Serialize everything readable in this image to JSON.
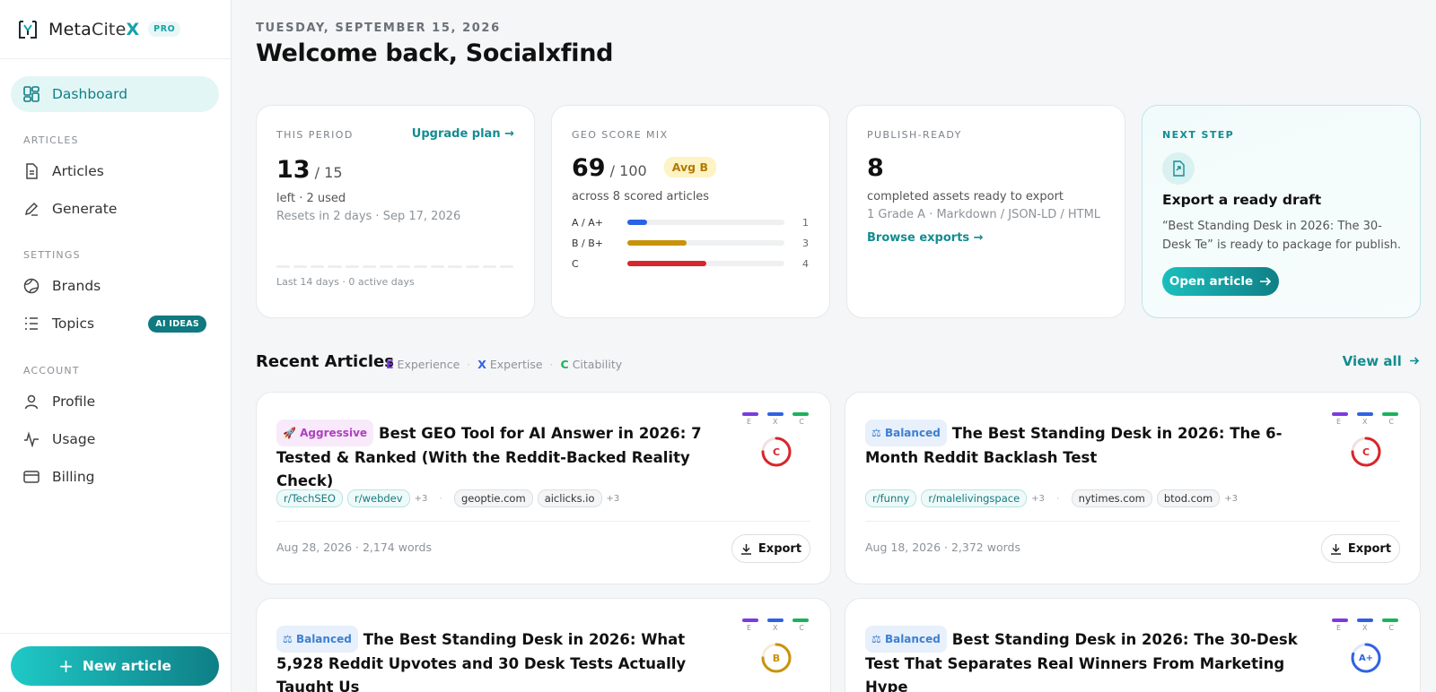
{
  "brand": {
    "name_prefix": "Meta",
    "name_mid": "Cite",
    "name_suffix": "X",
    "plan_badge": "PRO"
  },
  "nav": {
    "dashboard": "Dashboard",
    "section_articles": "ARTICLES",
    "articles": "Articles",
    "generate": "Generate",
    "section_settings": "SETTINGS",
    "brands": "Brands",
    "topics": "Topics",
    "topics_badge": "AI IDEAS",
    "section_account": "ACCOUNT",
    "profile": "Profile",
    "usage": "Usage",
    "billing": "Billing",
    "new_article": "New article"
  },
  "header": {
    "date": "TUESDAY, SEPTEMBER 15, 2026",
    "welcome": "Welcome back, Socialxfind"
  },
  "period": {
    "label": "THIS PERIOD",
    "upgrade": "Upgrade plan →",
    "left": "13",
    "total": "/ 15",
    "used": "left · 2 used",
    "resets": "Resets in 2 days · Sep 17, 2026",
    "activity": "Last 14 days · 0 active days",
    "activity_days": 14,
    "active_days": 0
  },
  "geo": {
    "label": "GEO SCORE MIX",
    "score": "69",
    "total": "/ 100",
    "avg_badge": "Avg B",
    "sub": "across 8 scored articles",
    "rows": [
      {
        "label": "A / A+",
        "count": "1",
        "fraction": 0.125,
        "color": "#2a62e6"
      },
      {
        "label": "B / B+",
        "count": "3",
        "fraction": 0.375,
        "color": "#c9920b"
      },
      {
        "label": "C",
        "count": "4",
        "fraction": 0.5,
        "color": "#d7262c"
      }
    ]
  },
  "publish": {
    "label": "PUBLISH-READY",
    "count": "8",
    "sub": "completed assets ready to export",
    "detail": "1 Grade A · Markdown / JSON-LD / HTML",
    "link": "Browse exports →"
  },
  "next": {
    "label": "NEXT STEP",
    "title": "Export a ready draft",
    "desc": "“Best Standing Desk in 2026: The 30-Desk Te” is ready to package for publish.",
    "button": "Open article"
  },
  "recent": {
    "title": "Recent Articles",
    "legend": [
      {
        "key": "E",
        "label": "Experience",
        "color": "#7c3ae0"
      },
      {
        "key": "X",
        "label": "Expertise",
        "color": "#2f62e3"
      },
      {
        "key": "C",
        "label": "Citability",
        "color": "#1bb35b"
      }
    ],
    "view_all": "View all",
    "articles": [
      {
        "mode": "Aggressive",
        "mode_icon": "🚀",
        "title": "Best GEO Tool for AI Answer in 2026: 7 Tested & Ranked (With the Reddit-Backed Reality Check)",
        "subs": [
          "r/TechSEO",
          "r/webdev"
        ],
        "subs_more": "+3",
        "domains": [
          "geoptie.com",
          "aiclicks.io"
        ],
        "domains_more": "+3",
        "meta": "Aug 28, 2026 · 2,174 words",
        "export": "Export",
        "grade": "C",
        "grade_color": "#d7262c",
        "grade_fraction": 0.75
      },
      {
        "mode": "Balanced",
        "mode_icon": "⚖",
        "title": "The Best Standing Desk in 2026: The 6-Month Reddit Backlash Test",
        "subs": [
          "r/funny",
          "r/malelivingspace"
        ],
        "subs_more": "+3",
        "domains": [
          "nytimes.com",
          "btod.com"
        ],
        "domains_more": "+3",
        "meta": "Aug 18, 2026 · 2,372 words",
        "export": "Export",
        "grade": "C",
        "grade_color": "#d7262c",
        "grade_fraction": 0.75
      },
      {
        "mode": "Balanced",
        "mode_icon": "⚖",
        "title": "The Best Standing Desk in 2026: What 5,928 Reddit Upvotes and 30 Desk Tests Actually Taught Us",
        "grade": "B",
        "grade_color": "#c9920b",
        "grade_fraction": 0.75
      },
      {
        "mode": "Balanced",
        "mode_icon": "⚖",
        "title": "Best Standing Desk in 2026: The 30-Desk Test That Separates Real Winners From Marketing Hype",
        "grade": "A+",
        "grade_color": "#2f62e3",
        "grade_fraction": 0.8
      }
    ]
  }
}
